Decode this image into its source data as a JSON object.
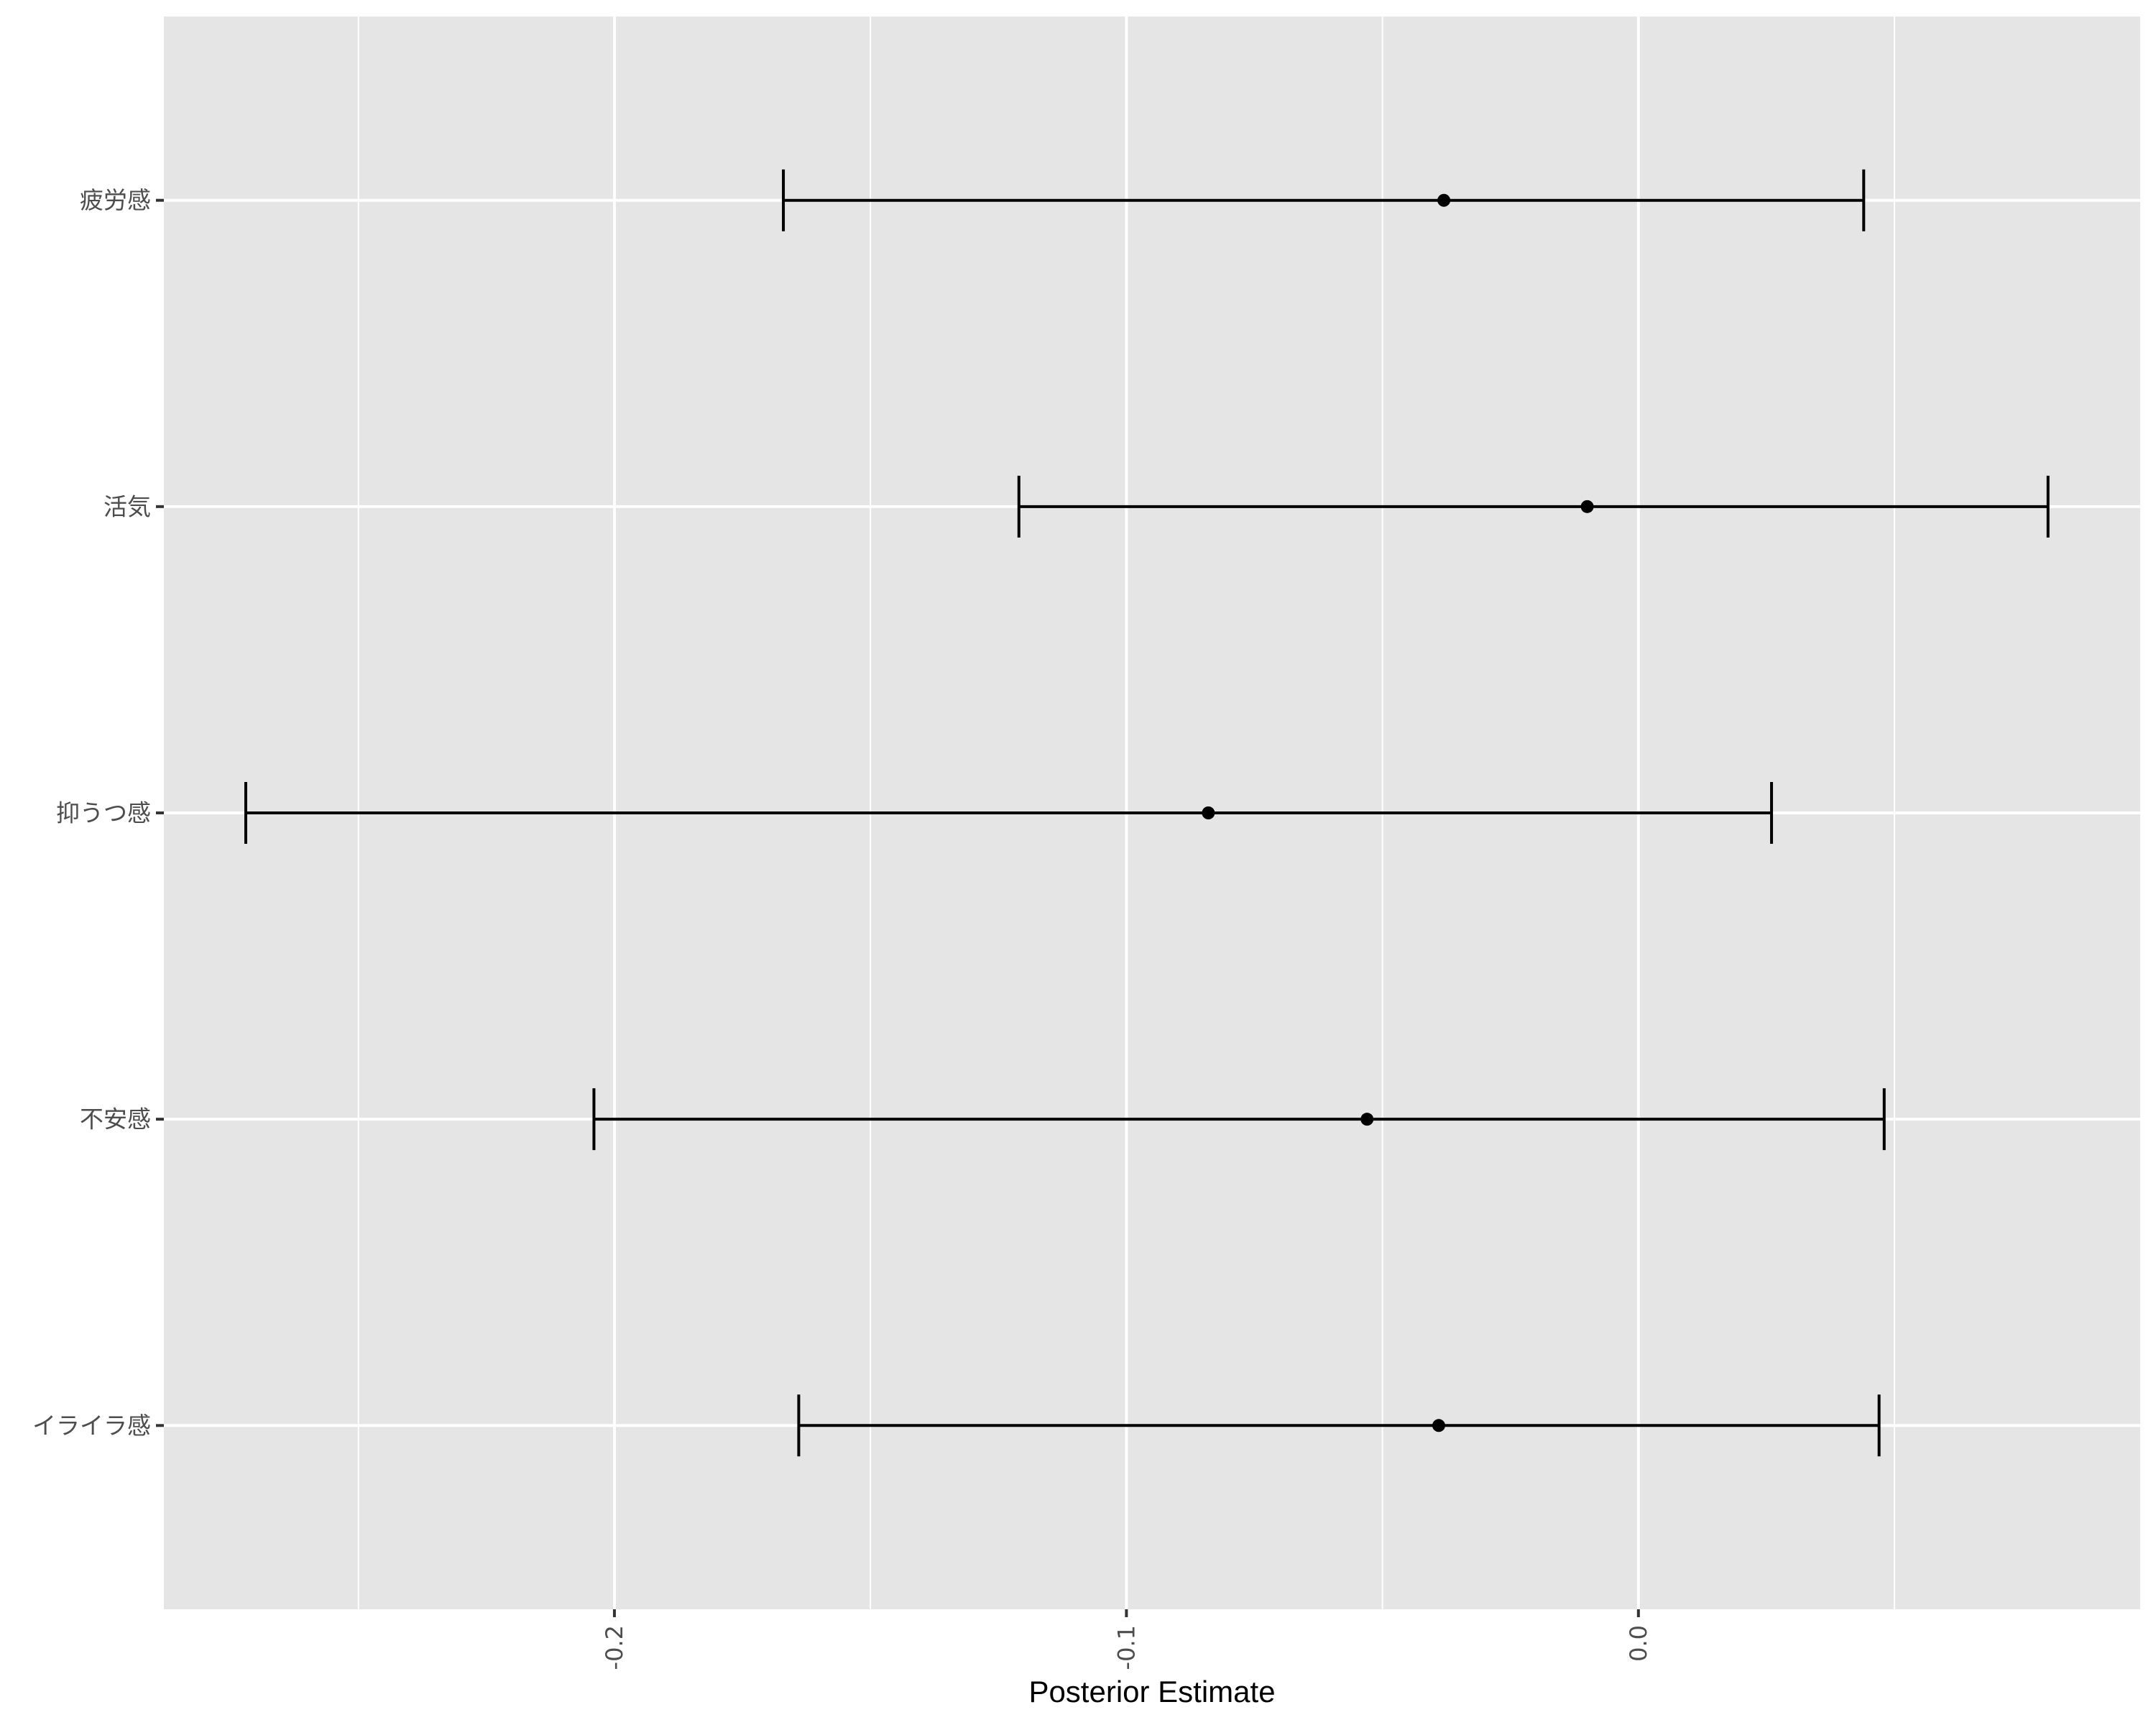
{
  "chart_data": {
    "type": "errorbar",
    "xlabel": "Posterior Estimate",
    "ylabel": "",
    "xlim": [
      -0.288,
      0.098
    ],
    "x_ticks": [
      {
        "value": -0.2,
        "label": "-0.2"
      },
      {
        "value": -0.1,
        "label": "-0.1"
      },
      {
        "value": 0.0,
        "label": "0.0"
      }
    ],
    "x_minor_ticks": [
      -0.25,
      -0.15,
      -0.05,
      0.05
    ],
    "grid": true,
    "background_color": "#e5e5e5",
    "grid_color": "#ffffff",
    "mark_color": "#000000",
    "categories": [
      "疲労感",
      "活気",
      "抑うつ感",
      "不安感",
      "イライラ感"
    ],
    "points": [
      {
        "label": "疲労感",
        "estimate": -0.038,
        "lower": -0.167,
        "upper": 0.044
      },
      {
        "label": "活気",
        "estimate": -0.01,
        "lower": -0.121,
        "upper": 0.08
      },
      {
        "label": "抑うつ感",
        "estimate": -0.084,
        "lower": -0.272,
        "upper": 0.026
      },
      {
        "label": "不安感",
        "estimate": -0.053,
        "lower": -0.204,
        "upper": 0.048
      },
      {
        "label": "イライラ感",
        "estimate": -0.039,
        "lower": -0.164,
        "upper": 0.047
      }
    ]
  }
}
